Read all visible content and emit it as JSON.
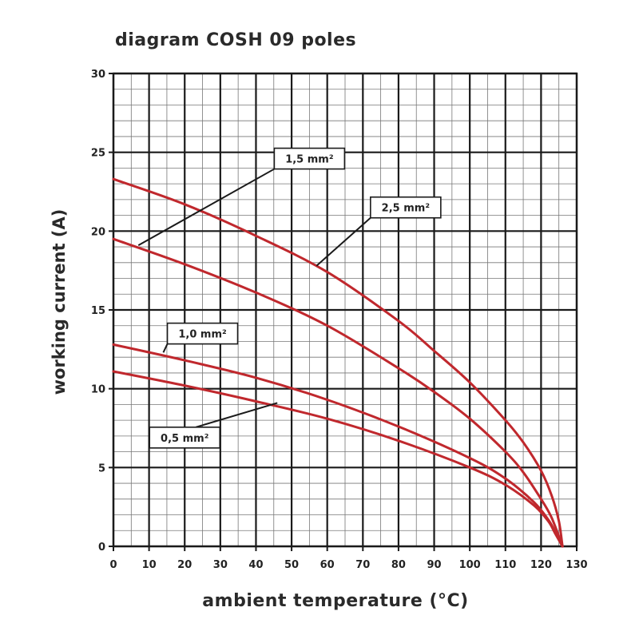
{
  "chart_data": {
    "type": "line",
    "title": "diagram COSH 09 poles",
    "xlabel": "ambient temperature (°C)",
    "ylabel": "working current (A)",
    "xlim": [
      0,
      130
    ],
    "ylim": [
      0,
      30
    ],
    "x_ticks": [
      "0",
      "10",
      "20",
      "30",
      "40",
      "50",
      "60",
      "70",
      "80",
      "90",
      "100",
      "110",
      "120",
      "130"
    ],
    "y_ticks": [
      "0",
      "5",
      "10",
      "15",
      "20",
      "25",
      "30"
    ],
    "grid": true,
    "series": [
      {
        "name": "2,5 mm²",
        "color": "#c0282d",
        "x": [
          0,
          20,
          40,
          60,
          80,
          90,
          100,
          110,
          115,
          120,
          123,
          125,
          126
        ],
        "y": [
          23.3,
          21.7,
          19.7,
          17.4,
          14.3,
          12.4,
          10.4,
          8.0,
          6.6,
          4.8,
          3.2,
          1.6,
          0
        ]
      },
      {
        "name": "1,5 mm²",
        "color": "#c0282d",
        "x": [
          0,
          20,
          40,
          60,
          80,
          90,
          100,
          110,
          115,
          120,
          123,
          126
        ],
        "y": [
          19.5,
          17.9,
          16.1,
          14.0,
          11.3,
          9.8,
          8.1,
          6.0,
          4.7,
          3.0,
          1.8,
          0
        ]
      },
      {
        "name": "1,0 mm²",
        "color": "#c0282d",
        "x": [
          0,
          20,
          40,
          60,
          80,
          100,
          110,
          118,
          122,
          124,
          126
        ],
        "y": [
          12.8,
          11.8,
          10.7,
          9.3,
          7.6,
          5.6,
          4.3,
          2.8,
          1.7,
          0.9,
          0
        ]
      },
      {
        "name": "0,5 mm²",
        "color": "#c0282d",
        "x": [
          0,
          20,
          40,
          60,
          80,
          100,
          110,
          118,
          122,
          124,
          126
        ],
        "y": [
          11.1,
          10.2,
          9.2,
          8.1,
          6.7,
          5.0,
          3.9,
          2.6,
          1.6,
          0.8,
          0
        ]
      }
    ],
    "annotations": [
      {
        "text": "1,5 mm²",
        "series": "1,5 mm²",
        "point_x": 7,
        "point_y": 19.1,
        "box_x": 55,
        "box_y": 24.6
      },
      {
        "text": "2,5 mm²",
        "series": "2,5 mm²",
        "point_x": 57,
        "point_y": 17.8,
        "box_x": 82,
        "box_y": 21.5
      },
      {
        "text": "1,0 mm²",
        "series": "1,0 mm²",
        "point_x": 14,
        "point_y": 12.3,
        "box_x": 25,
        "box_y": 13.5
      },
      {
        "text": "0,5 mm²",
        "series": "0,5 mm²",
        "point_x": 46,
        "point_y": 9.1,
        "box_x": 20,
        "box_y": 6.9
      }
    ]
  }
}
